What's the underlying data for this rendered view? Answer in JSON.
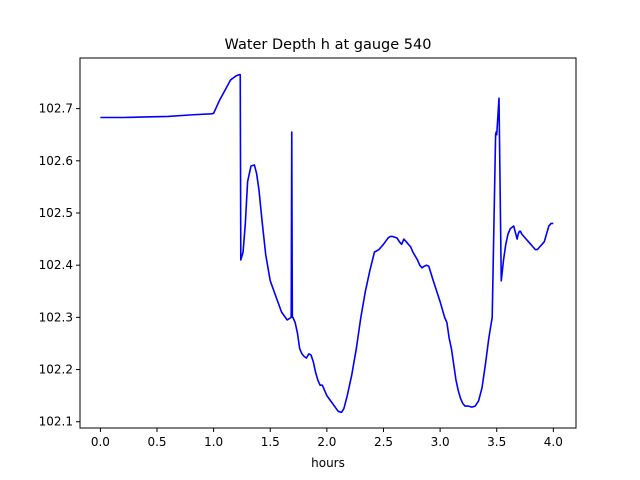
{
  "chart_data": {
    "type": "line",
    "title": "Water Depth h at gauge 540",
    "xlabel": "hours",
    "ylabel": "",
    "xlim": [
      -0.18,
      4.2
    ],
    "ylim": [
      102.088,
      102.797
    ],
    "xticks": [
      0.0,
      0.5,
      1.0,
      1.5,
      2.0,
      2.5,
      3.0,
      3.5,
      4.0
    ],
    "xtick_labels": [
      "0.0",
      "0.5",
      "1.0",
      "1.5",
      "2.0",
      "2.5",
      "3.0",
      "3.5",
      "4.0"
    ],
    "yticks": [
      102.1,
      102.2,
      102.3,
      102.4,
      102.5,
      102.6,
      102.7
    ],
    "ytick_labels": [
      "102.1",
      "102.2",
      "102.3",
      "102.4",
      "102.5",
      "102.6",
      "102.7"
    ],
    "grid": false,
    "series": [
      {
        "color": "#0000ff",
        "x": [
          0.0,
          0.2,
          0.4,
          0.6,
          0.8,
          0.98,
          1.0,
          1.05,
          1.1,
          1.15,
          1.2,
          1.225,
          1.235,
          1.24,
          1.26,
          1.28,
          1.3,
          1.33,
          1.36,
          1.38,
          1.4,
          1.43,
          1.46,
          1.5,
          1.55,
          1.6,
          1.65,
          1.685,
          1.69,
          1.695,
          1.7,
          1.72,
          1.74,
          1.76,
          1.78,
          1.8,
          1.82,
          1.84,
          1.86,
          1.88,
          1.9,
          1.92,
          1.94,
          1.96,
          2.0,
          2.05,
          2.1,
          2.13,
          2.15,
          2.18,
          2.22,
          2.26,
          2.3,
          2.34,
          2.38,
          2.42,
          2.46,
          2.5,
          2.54,
          2.56,
          2.58,
          2.62,
          2.64,
          2.66,
          2.68,
          2.7,
          2.72,
          2.74,
          2.76,
          2.8,
          2.82,
          2.84,
          2.86,
          2.88,
          2.9,
          2.94,
          2.97,
          3.0,
          3.02,
          3.04,
          3.06,
          3.08,
          3.1,
          3.12,
          3.14,
          3.16,
          3.18,
          3.2,
          3.22,
          3.25,
          3.28,
          3.31,
          3.34,
          3.37,
          3.4,
          3.43,
          3.46,
          3.49,
          3.495,
          3.5,
          3.52,
          3.54,
          3.55,
          3.56,
          3.58,
          3.6,
          3.62,
          3.65,
          3.68,
          3.69,
          3.7,
          3.71,
          3.72,
          3.74,
          3.76,
          3.78,
          3.8,
          3.82,
          3.84,
          3.86,
          3.88,
          3.9,
          3.92,
          3.94,
          3.96,
          3.98,
          4.0
        ],
        "y": [
          102.683,
          102.683,
          102.684,
          102.685,
          102.688,
          102.69,
          102.691,
          102.715,
          102.735,
          102.755,
          102.763,
          102.765,
          102.765,
          102.41,
          102.425,
          102.48,
          102.56,
          102.59,
          102.592,
          102.575,
          102.545,
          102.48,
          102.42,
          102.37,
          102.34,
          102.31,
          102.295,
          102.3,
          102.655,
          102.3,
          102.3,
          102.29,
          102.27,
          102.24,
          102.23,
          102.225,
          102.222,
          102.23,
          102.228,
          102.215,
          102.195,
          102.18,
          102.17,
          102.17,
          102.15,
          102.135,
          102.12,
          102.118,
          102.125,
          102.15,
          102.19,
          102.24,
          102.3,
          102.35,
          102.39,
          102.425,
          102.43,
          102.44,
          102.452,
          102.455,
          102.455,
          102.452,
          102.445,
          102.44,
          102.45,
          102.445,
          102.44,
          102.435,
          102.425,
          102.41,
          102.4,
          102.395,
          102.398,
          102.4,
          102.398,
          102.37,
          102.35,
          102.33,
          102.315,
          102.3,
          102.29,
          102.26,
          102.24,
          102.21,
          102.18,
          102.16,
          102.145,
          102.135,
          102.13,
          102.13,
          102.128,
          102.13,
          102.14,
          102.165,
          102.21,
          102.26,
          102.3,
          102.65,
          102.655,
          102.65,
          102.72,
          102.37,
          102.39,
          102.41,
          102.44,
          102.46,
          102.47,
          102.475,
          102.45,
          102.46,
          102.465,
          102.465,
          102.46,
          102.455,
          102.45,
          102.445,
          102.44,
          102.435,
          102.43,
          102.43,
          102.435,
          102.44,
          102.445,
          102.46,
          102.475,
          102.48,
          102.48
        ]
      }
    ]
  }
}
